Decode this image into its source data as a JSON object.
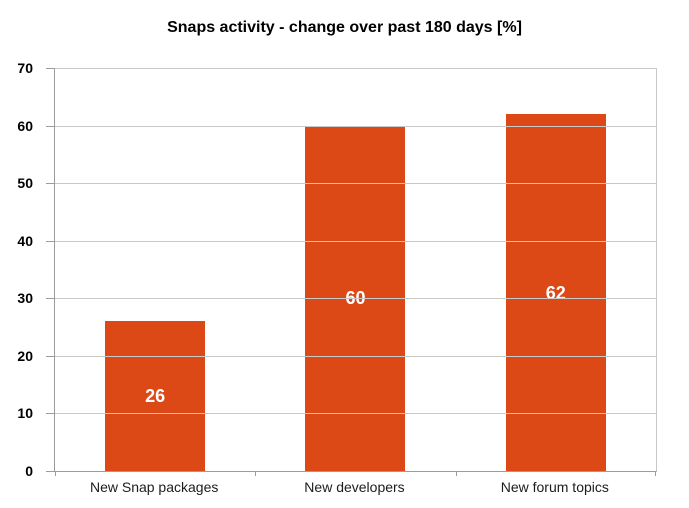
{
  "chart_data": {
    "type": "bar",
    "title": "Snaps activity - change over past 180 days [%]",
    "categories": [
      "New Snap packages",
      "New developers",
      "New forum topics"
    ],
    "values": [
      26,
      60,
      62
    ],
    "xlabel": "",
    "ylabel": "",
    "ylim": [
      0,
      70
    ],
    "yticks": [
      0,
      10,
      20,
      30,
      40,
      50,
      60,
      70
    ],
    "grid": "horizontal",
    "legend_position": "none",
    "value_label_position": "inside-center",
    "colors": {
      "bar": "#dc4917",
      "grid": "#c9c9c9",
      "axis": "#9c9c9c",
      "title_text": "#000000",
      "tick_text": "#000000",
      "category_text": "#1c1c1c",
      "value_text": "#ffffff",
      "background": "#ffffff"
    }
  }
}
